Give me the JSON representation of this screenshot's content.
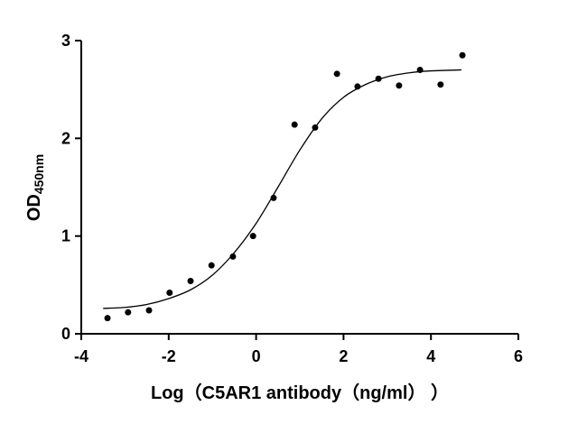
{
  "chart_data": {
    "type": "scatter",
    "x_label": "Log（C5AR1 antibody（ng/ml）  ）",
    "y_label": "OD",
    "y_label_subscript": "450nm",
    "xlim": [
      -4,
      6
    ],
    "xticks": [
      -4,
      -2,
      0,
      2,
      4,
      6
    ],
    "ylim": [
      0,
      3
    ],
    "yticks": [
      0,
      1,
      2,
      3
    ],
    "series": [
      {
        "type": "scatter",
        "color": "#000000",
        "x": [
          -3.4,
          -2.93,
          -2.45,
          -1.98,
          -1.5,
          -1.02,
          -0.53,
          -0.07,
          0.4,
          0.88,
          1.35,
          1.85,
          2.32,
          2.8,
          3.27,
          3.75,
          4.22,
          4.72
        ],
        "values": [
          0.16,
          0.22,
          0.24,
          0.42,
          0.54,
          0.7,
          0.79,
          1.0,
          1.39,
          2.14,
          2.11,
          2.66,
          2.53,
          2.61,
          2.54,
          2.7,
          2.55,
          2.85
        ]
      },
      {
        "type": "line",
        "color": "#000000",
        "x": [
          -3.5,
          -3,
          -2.5,
          -2,
          -1.5,
          -1,
          -0.5,
          0,
          0.5,
          1,
          1.5,
          2,
          2.5,
          3,
          3.5,
          4,
          4.7
        ],
        "values": [
          0.26,
          0.27,
          0.3,
          0.36,
          0.45,
          0.6,
          0.83,
          1.13,
          1.5,
          1.88,
          2.2,
          2.42,
          2.55,
          2.63,
          2.67,
          2.69,
          2.7
        ]
      }
    ]
  }
}
